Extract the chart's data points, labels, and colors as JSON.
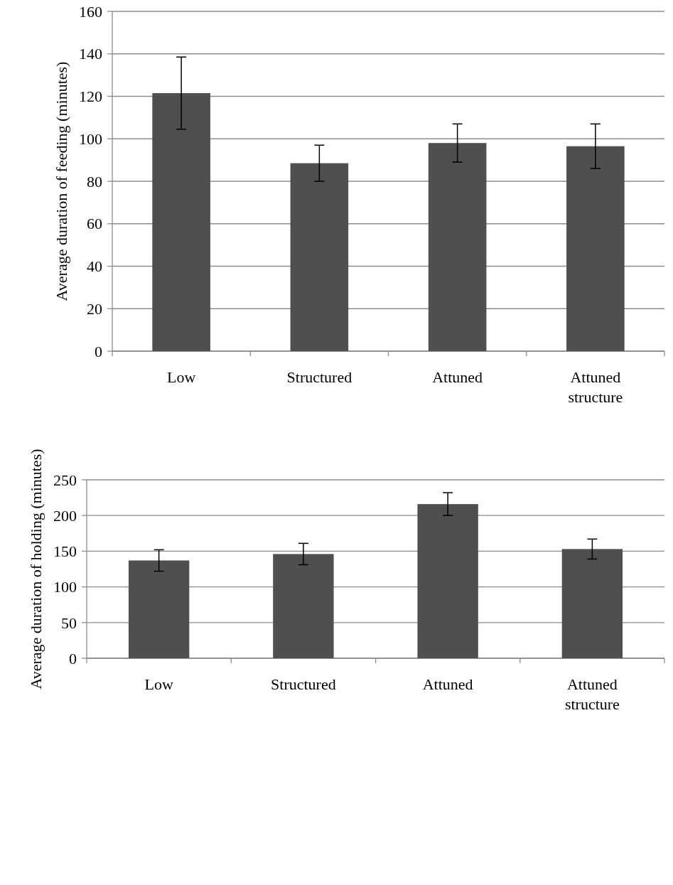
{
  "chart_data": [
    {
      "type": "bar",
      "ylabel": "Average duration of feeding (minutes)",
      "categories": [
        "Low",
        "Structured",
        "Attuned",
        "Attuned structure"
      ],
      "values": [
        121.5,
        88.5,
        98,
        96.5
      ],
      "errors": [
        17,
        8.5,
        9,
        10.5
      ],
      "color": "#4f4f4f",
      "ylim": [
        0,
        160
      ],
      "yticks": [
        0,
        20,
        40,
        60,
        80,
        100,
        120,
        140,
        160
      ],
      "grid": "y"
    },
    {
      "type": "bar",
      "ylabel": "Average duration of holding (minutes)",
      "categories": [
        "Low",
        "Structured",
        "Attuned",
        "Attuned structure"
      ],
      "values": [
        137,
        146,
        216,
        153
      ],
      "errors": [
        15,
        15,
        16,
        14
      ],
      "color": "#4f4f4f",
      "ylim": [
        0,
        250
      ],
      "yticks": [
        0,
        50,
        100,
        150,
        200,
        250
      ],
      "grid": "y"
    }
  ]
}
